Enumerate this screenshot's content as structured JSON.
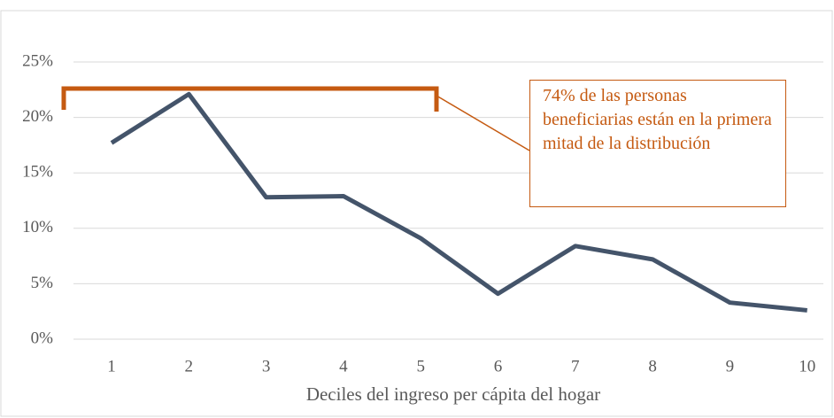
{
  "chart_data": {
    "type": "line",
    "xlabel": "Deciles del ingreso per cápita del hogar",
    "categories": [
      "1",
      "2",
      "3",
      "4",
      "5",
      "6",
      "7",
      "8",
      "9",
      "10"
    ],
    "series": [
      {
        "name": "Personas beneficiarias",
        "color": "#44546a",
        "values": [
          17.7,
          22.1,
          12.8,
          12.9,
          9.1,
          4.1,
          8.4,
          7.2,
          3.3,
          2.6
        ]
      }
    ],
    "ylim": [
      0,
      25
    ],
    "yticks": [
      {
        "value": 0,
        "label": "0%"
      },
      {
        "value": 5,
        "label": "5%"
      },
      {
        "value": 10,
        "label": "10%"
      },
      {
        "value": 15,
        "label": "15%"
      },
      {
        "value": 20,
        "label": "20%"
      },
      {
        "value": 25,
        "label": "25%"
      }
    ],
    "grid": true,
    "annotation": "74% de las personas beneficiarias están en la primera mitad de la distribución"
  }
}
